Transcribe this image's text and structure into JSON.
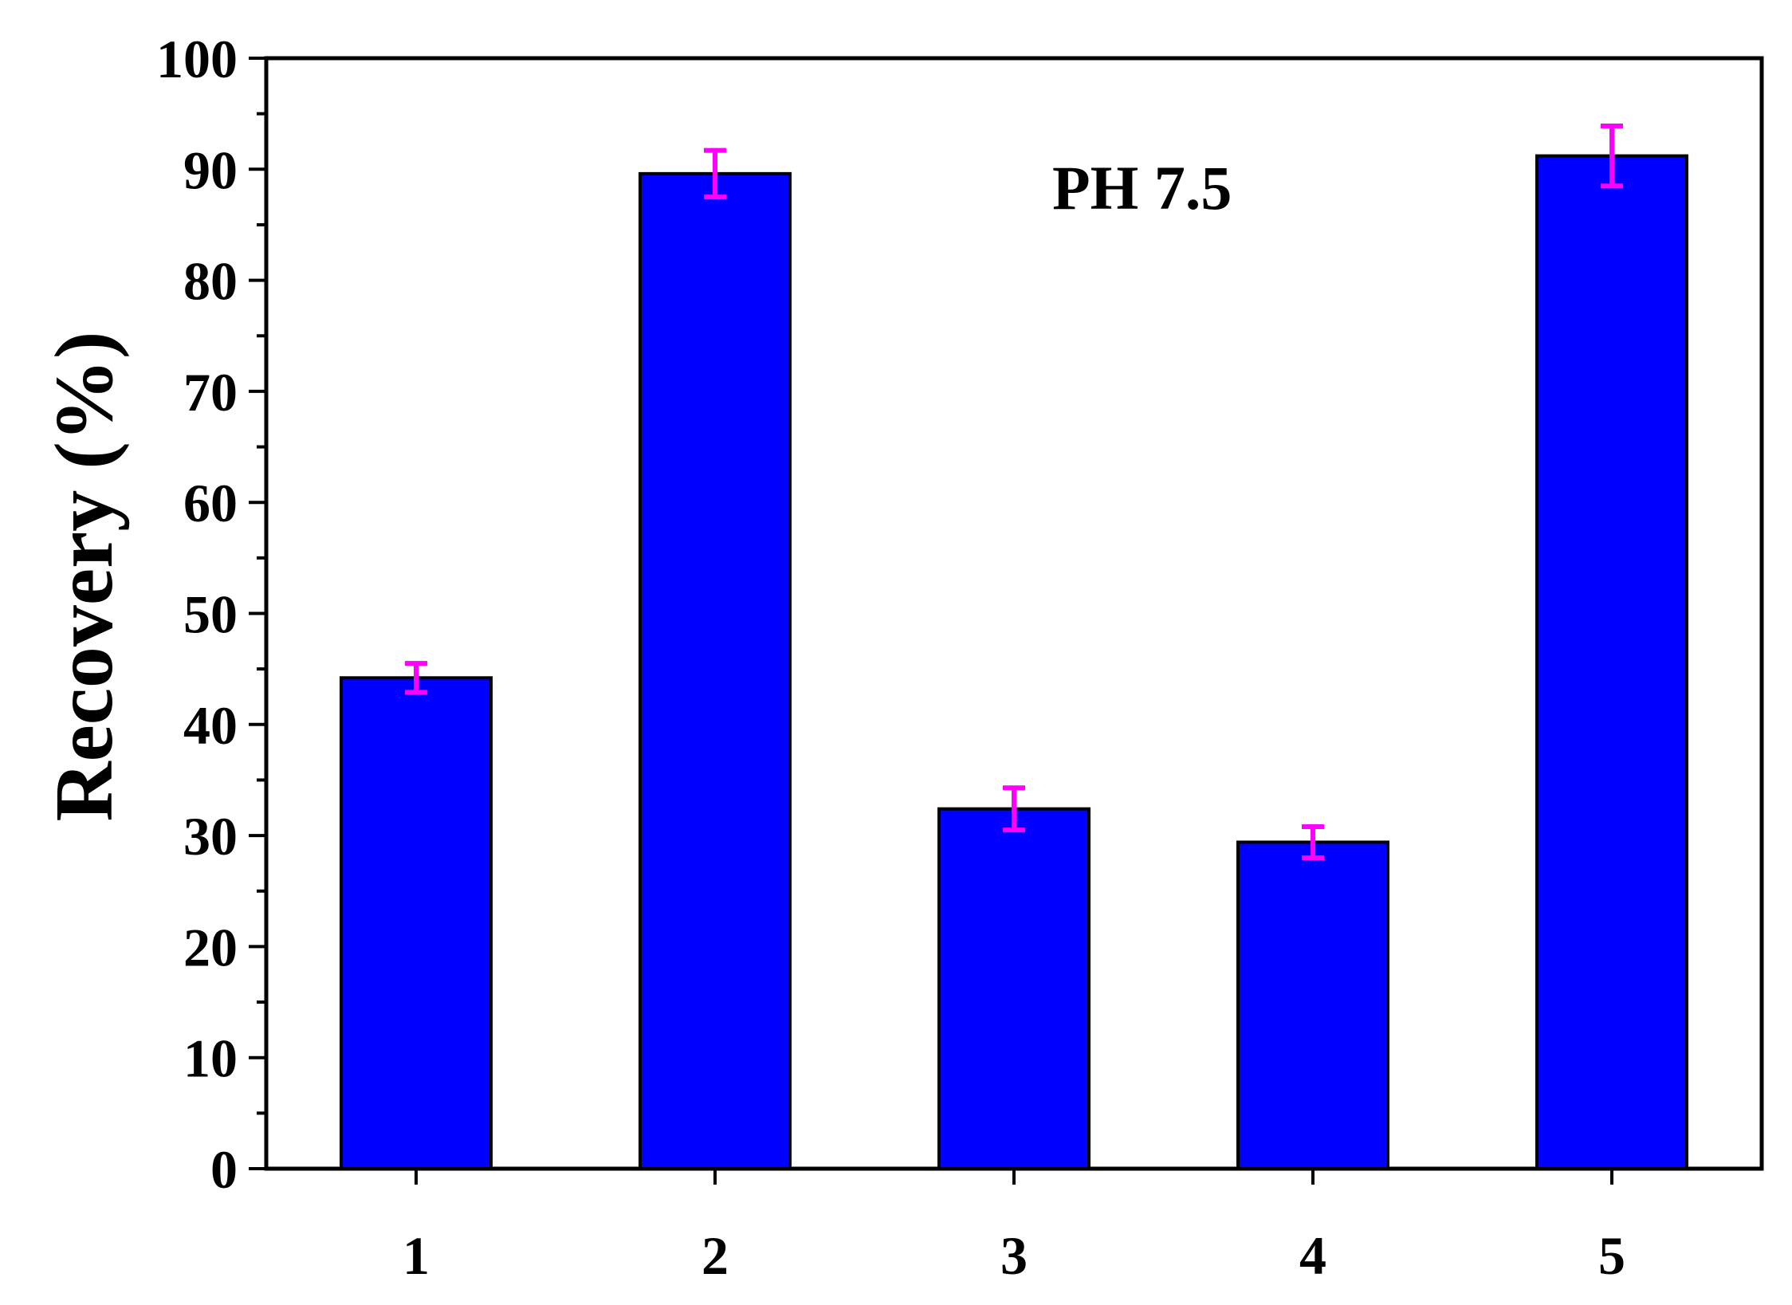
{
  "chart_data": {
    "type": "bar",
    "categories": [
      "1",
      "2",
      "3",
      "4",
      "5"
    ],
    "values": [
      44.2,
      89.6,
      32.4,
      29.4,
      91.2
    ],
    "errors": [
      1.3,
      2.1,
      1.9,
      1.4,
      2.7
    ],
    "title": "",
    "xlabel": "",
    "ylabel": "Recovery (%)",
    "ylim": [
      0,
      100
    ],
    "yticks": [
      0,
      10,
      20,
      30,
      40,
      50,
      60,
      70,
      80,
      90,
      100
    ],
    "yticklabels": [
      "0",
      "10",
      "20",
      "30",
      "40",
      "50",
      "60",
      "70",
      "80",
      "90",
      "100"
    ],
    "annotation": "PH 7.5",
    "grid": false,
    "legend": "none",
    "colors": {
      "bar": "#0000ff",
      "error_bar": "#ff00ff",
      "axis": "#000000"
    }
  }
}
